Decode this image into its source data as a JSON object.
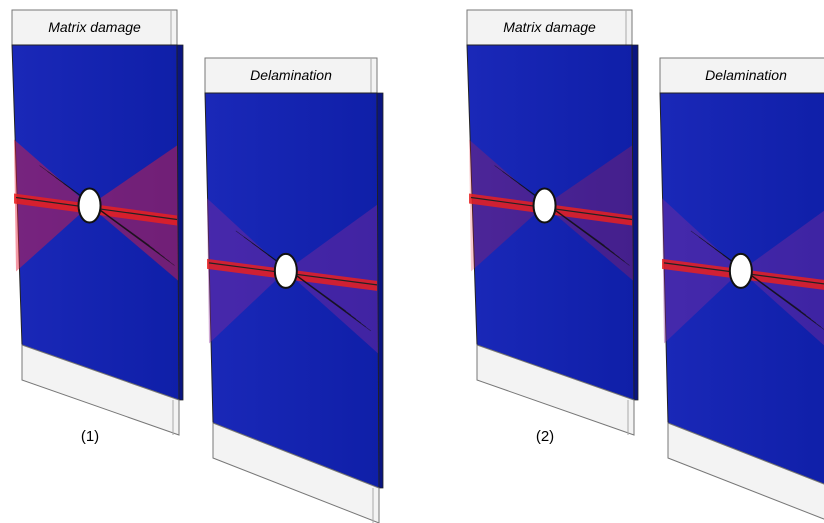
{
  "panels": [
    {
      "label": "(1)",
      "views": [
        {
          "title": "Matrix damage"
        },
        {
          "title": "Delamination"
        }
      ]
    },
    {
      "label": "(2)",
      "views": [
        {
          "title": "Matrix damage"
        },
        {
          "title": "Delamination"
        }
      ]
    }
  ]
}
